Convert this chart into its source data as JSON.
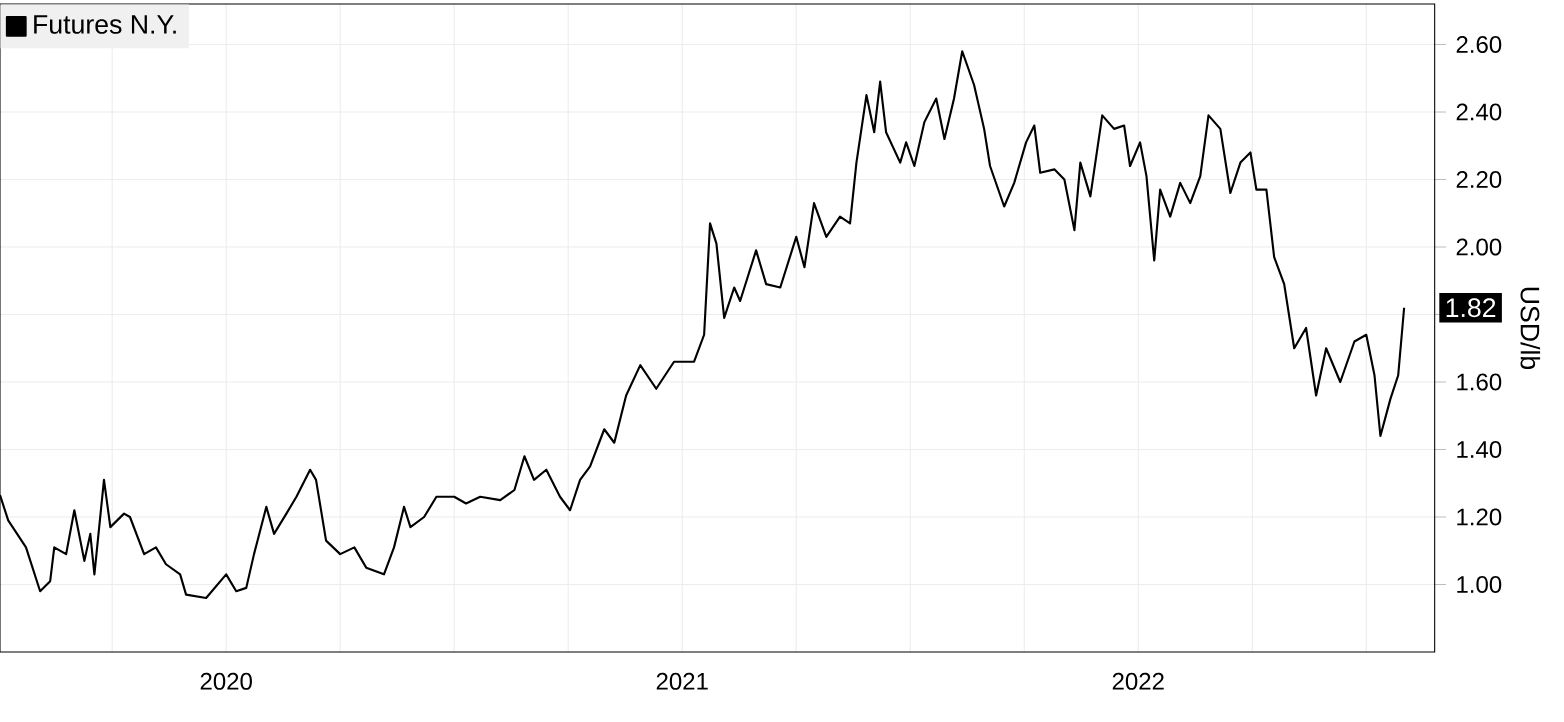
{
  "chart_data": {
    "type": "line",
    "ylabel": "USD/lb",
    "legend": "top left",
    "grid": true,
    "marker": "none",
    "line_style": "solid",
    "xlim": [
      2019.504,
      2022.65
    ],
    "ylim": [
      0.8,
      2.72
    ],
    "xticks": [
      {
        "value": 2019.75,
        "label": null
      },
      2020,
      {
        "value": 2020.25,
        "label": null
      },
      {
        "value": 2020.5,
        "label": null
      },
      {
        "value": 2020.75,
        "label": null
      },
      2021,
      {
        "value": 2021.25,
        "label": null
      },
      {
        "value": 2021.5,
        "label": null
      },
      {
        "value": 2021.75,
        "label": null
      },
      2022,
      {
        "value": 2022.25,
        "label": null
      },
      {
        "value": 2022.5,
        "label": null
      }
    ],
    "yticks": [
      {
        "value": 1.0,
        "label": "1.00"
      },
      {
        "value": 1.2,
        "label": "1.20"
      },
      {
        "value": 1.4,
        "label": "1.40"
      },
      {
        "value": 1.6,
        "label": "1.60"
      },
      {
        "value": 1.8,
        "label": null
      },
      {
        "value": 2.0,
        "label": "2.00"
      },
      {
        "value": 2.2,
        "label": "2.20"
      },
      {
        "value": 2.4,
        "label": "2.40"
      },
      {
        "value": 2.6,
        "label": "2.60"
      }
    ],
    "x": [
      2019.504,
      2019.522,
      2019.561,
      2019.592,
      2019.614,
      2019.623,
      2019.649,
      2019.667,
      2019.689,
      2019.702,
      2019.711,
      2019.732,
      2019.746,
      2019.776,
      2019.789,
      2019.82,
      2019.846,
      2019.868,
      2019.899,
      2019.912,
      2019.956,
      2020.0,
      2020.022,
      2020.044,
      2020.061,
      2020.088,
      2020.105,
      2020.132,
      2020.154,
      2020.184,
      2020.197,
      2020.219,
      2020.25,
      2020.281,
      2020.307,
      2020.346,
      2020.368,
      2020.39,
      2020.404,
      2020.434,
      2020.461,
      2020.5,
      2020.526,
      2020.557,
      2020.601,
      2020.632,
      2020.654,
      2020.675,
      2020.702,
      2020.732,
      2020.754,
      2020.776,
      2020.798,
      2020.829,
      2020.851,
      2020.877,
      2020.908,
      2020.943,
      2020.982,
      2021.026,
      2021.048,
      2021.061,
      2021.075,
      2021.092,
      2021.114,
      2021.127,
      2021.162,
      2021.184,
      2021.215,
      2021.25,
      2021.268,
      2021.289,
      2021.316,
      2021.346,
      2021.368,
      2021.382,
      2021.404,
      2021.421,
      2021.434,
      2021.447,
      2021.478,
      2021.491,
      2021.509,
      2021.531,
      2021.557,
      2021.575,
      2021.596,
      2021.614,
      2021.64,
      2021.662,
      2021.675,
      2021.706,
      2021.728,
      2021.754,
      2021.772,
      2021.785,
      2021.816,
      2021.838,
      2021.86,
      2021.873,
      2021.895,
      2021.921,
      2021.947,
      2021.969,
      2021.982,
      2022.004,
      2022.018,
      2022.035,
      2022.048,
      2022.07,
      2022.092,
      2022.114,
      2022.136,
      2022.154,
      2022.18,
      2022.202,
      2022.224,
      2022.246,
      2022.259,
      2022.281,
      2022.298,
      2022.32,
      2022.342,
      2022.368,
      2022.39,
      2022.412,
      2022.443,
      2022.474,
      2022.5,
      2022.518,
      2022.531,
      2022.553,
      2022.57,
      2022.583
    ],
    "series": [
      {
        "name": "Futures N.Y.",
        "color": "#000000",
        "values": [
          1.265,
          1.19,
          1.11,
          0.98,
          1.01,
          1.11,
          1.09,
          1.22,
          1.07,
          1.15,
          1.03,
          1.31,
          1.17,
          1.21,
          1.2,
          1.09,
          1.11,
          1.06,
          1.03,
          0.97,
          0.96,
          1.03,
          0.98,
          0.99,
          1.09,
          1.23,
          1.15,
          1.21,
          1.26,
          1.34,
          1.31,
          1.13,
          1.09,
          1.11,
          1.05,
          1.03,
          1.11,
          1.23,
          1.17,
          1.2,
          1.26,
          1.26,
          1.24,
          1.26,
          1.25,
          1.28,
          1.38,
          1.31,
          1.34,
          1.26,
          1.22,
          1.31,
          1.35,
          1.46,
          1.42,
          1.56,
          1.65,
          1.58,
          1.66,
          1.66,
          1.74,
          2.07,
          2.01,
          1.79,
          1.88,
          1.84,
          1.99,
          1.89,
          1.88,
          2.03,
          1.94,
          2.13,
          2.03,
          2.09,
          2.07,
          2.25,
          2.45,
          2.34,
          2.49,
          2.34,
          2.25,
          2.31,
          2.24,
          2.37,
          2.44,
          2.32,
          2.44,
          2.58,
          2.48,
          2.35,
          2.24,
          2.12,
          2.19,
          2.31,
          2.36,
          2.22,
          2.23,
          2.2,
          2.05,
          2.25,
          2.15,
          2.39,
          2.35,
          2.36,
          2.24,
          2.31,
          2.21,
          1.96,
          2.17,
          2.09,
          2.19,
          2.13,
          2.21,
          2.39,
          2.35,
          2.16,
          2.25,
          2.28,
          2.17,
          2.17,
          1.97,
          1.89,
          1.7,
          1.76,
          1.56,
          1.7,
          1.6,
          1.72,
          1.74,
          1.62,
          1.44,
          1.55,
          1.62,
          1.82
        ]
      }
    ],
    "annotations": [
      {
        "text": "1.82",
        "x": 2022.583,
        "y": 1.82
      }
    ]
  }
}
